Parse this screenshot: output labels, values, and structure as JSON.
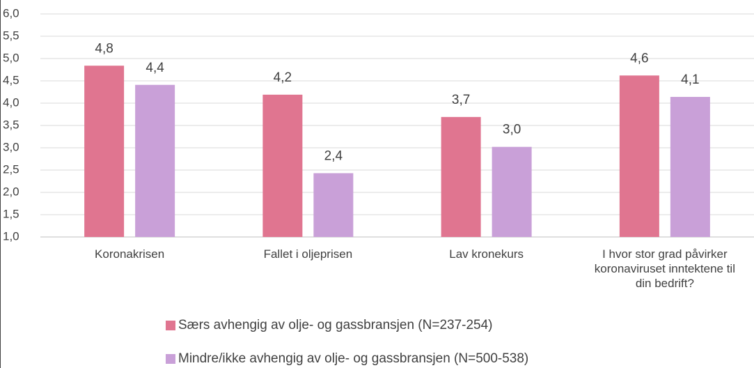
{
  "chart_data": {
    "type": "bar",
    "categories": [
      "Koronakrisen",
      "Fallet i oljeprisen",
      "Lav kronekurs",
      "I hvor stor grad påvirker koronaviruset inntektene til din bedrift?"
    ],
    "series": [
      {
        "name": "Særs avhengig av olje- og gassbransjen (N=237-254)",
        "color": "#e07590",
        "values": [
          4.84,
          4.19,
          3.69,
          4.62
        ],
        "value_labels": [
          "4,8",
          "4,2",
          "3,7",
          "4,6"
        ]
      },
      {
        "name": "Mindre/ikke avhengig av olje- og gassbransjen (N=500-538)",
        "color": "#c9a0d8",
        "values": [
          4.41,
          2.43,
          3.02,
          4.14
        ],
        "value_labels": [
          "4,4",
          "2,4",
          "3,0",
          "4,1"
        ]
      }
    ],
    "ylim": [
      1,
      6
    ],
    "yticks": [
      {
        "value": 1,
        "label": "1,0"
      },
      {
        "value": 1.5,
        "label": "1,5"
      },
      {
        "value": 2,
        "label": "2,0"
      },
      {
        "value": 2.5,
        "label": "2,5"
      },
      {
        "value": 3,
        "label": "3,0"
      },
      {
        "value": 3.5,
        "label": "3,5"
      },
      {
        "value": 4,
        "label": "4,0"
      },
      {
        "value": 4.5,
        "label": "4,5"
      },
      {
        "value": 5,
        "label": "5,0"
      },
      {
        "value": 5.5,
        "label": "5,5"
      },
      {
        "value": 6,
        "label": "6,0"
      }
    ],
    "grid": true,
    "legend": "bottom"
  }
}
